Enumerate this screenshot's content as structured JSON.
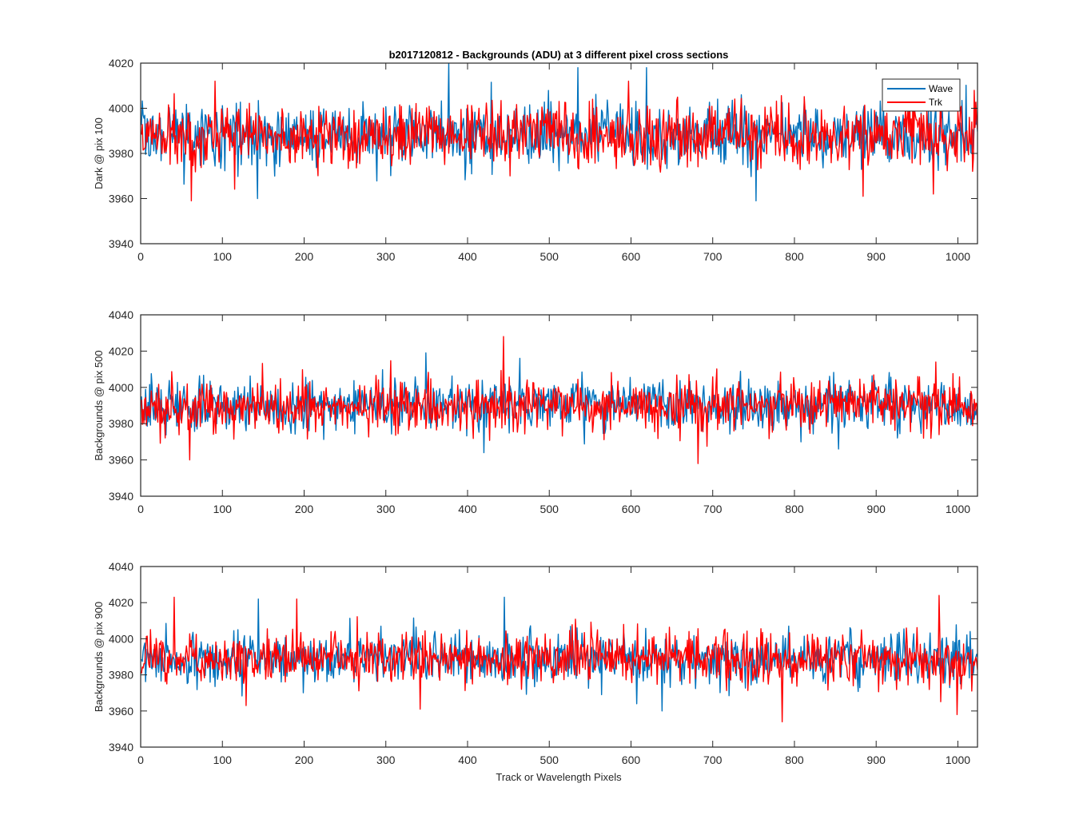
{
  "figure_title": "b2017120812 - Backgrounds (ADU) at 3 different pixel cross sections",
  "xlabel": "Track or Wavelength Pixels",
  "legend": {
    "placement": "top-right",
    "entries": [
      "Wave",
      "Trk"
    ]
  },
  "colors": {
    "Wave": "#0072BD",
    "Trk": "#FF0000",
    "axes": "#262626"
  },
  "chart_data": [
    {
      "type": "line",
      "ylabel": "Dark @ pix 100",
      "xlim": [
        0,
        1024
      ],
      "ylim": [
        3940,
        4020
      ],
      "xticks": [
        0,
        100,
        200,
        300,
        400,
        500,
        600,
        700,
        800,
        900,
        1000
      ],
      "yticks": [
        3940,
        3960,
        3980,
        4000,
        4020
      ],
      "grid": false,
      "series": [
        {
          "name": "Wave",
          "mean": 3988,
          "spread": 7,
          "min": 3959,
          "max": 4020,
          "n_points": 1024,
          "peaks": [
            [
              376,
              4020
            ],
            [
              534,
              4018
            ],
            [
              618,
              4018
            ]
          ],
          "troughs": [
            [
              142,
              3960
            ],
            [
              752,
              3959
            ]
          ]
        },
        {
          "name": "Trk",
          "mean": 3988,
          "spread": 7,
          "min": 3959,
          "max": 4012,
          "n_points": 1024,
          "peaks": [
            [
              90,
              4012
            ],
            [
              596,
              4012
            ]
          ],
          "troughs": [
            [
              61,
              3959
            ],
            [
              883,
              3961
            ],
            [
              969,
              3962
            ]
          ]
        }
      ]
    },
    {
      "type": "line",
      "ylabel": "Backgrounds @ pix 500",
      "xlim": [
        0,
        1024
      ],
      "ylim": [
        3940,
        4040
      ],
      "xticks": [
        0,
        100,
        200,
        300,
        400,
        500,
        600,
        700,
        800,
        900,
        1000
      ],
      "yticks": [
        3940,
        3960,
        3980,
        4000,
        4020,
        4040
      ],
      "grid": false,
      "series": [
        {
          "name": "Wave",
          "mean": 3990,
          "spread": 7,
          "min": 3964,
          "max": 4019,
          "n_points": 1024,
          "peaks": [
            [
              348,
              4019
            ],
            [
              463,
              4016
            ]
          ],
          "troughs": [
            [
              419,
              3964
            ],
            [
              853,
              3966
            ]
          ]
        },
        {
          "name": "Trk",
          "mean": 3990,
          "spread": 7,
          "min": 3958,
          "max": 4028,
          "n_points": 1024,
          "peaks": [
            [
              443,
              4028
            ],
            [
              972,
              4014
            ]
          ],
          "troughs": [
            [
              59,
              3960
            ],
            [
              681,
              3958
            ]
          ]
        }
      ]
    },
    {
      "type": "line",
      "ylabel": "Backgrounds @ pix 900",
      "xlim": [
        0,
        1024
      ],
      "ylim": [
        3940,
        4040
      ],
      "xticks": [
        0,
        100,
        200,
        300,
        400,
        500,
        600,
        700,
        800,
        900,
        1000
      ],
      "yticks": [
        3940,
        3960,
        3980,
        4000,
        4020,
        4040
      ],
      "grid": false,
      "series": [
        {
          "name": "Wave",
          "mean": 3989,
          "spread": 7,
          "min": 3960,
          "max": 4023,
          "n_points": 1024,
          "peaks": [
            [
              143,
              4022
            ],
            [
              444,
              4023
            ]
          ],
          "troughs": [
            [
              606,
              3964
            ],
            [
              637,
              3960
            ]
          ]
        },
        {
          "name": "Trk",
          "mean": 3989,
          "spread": 7,
          "min": 3954,
          "max": 4024,
          "n_points": 1024,
          "peaks": [
            [
              40,
              4023
            ],
            [
              190,
              4022
            ],
            [
              976,
              4024
            ]
          ],
          "troughs": [
            [
              128,
              3963
            ],
            [
              341,
              3961
            ],
            [
              784,
              3954
            ],
            [
              998,
              3958
            ]
          ]
        }
      ]
    }
  ]
}
